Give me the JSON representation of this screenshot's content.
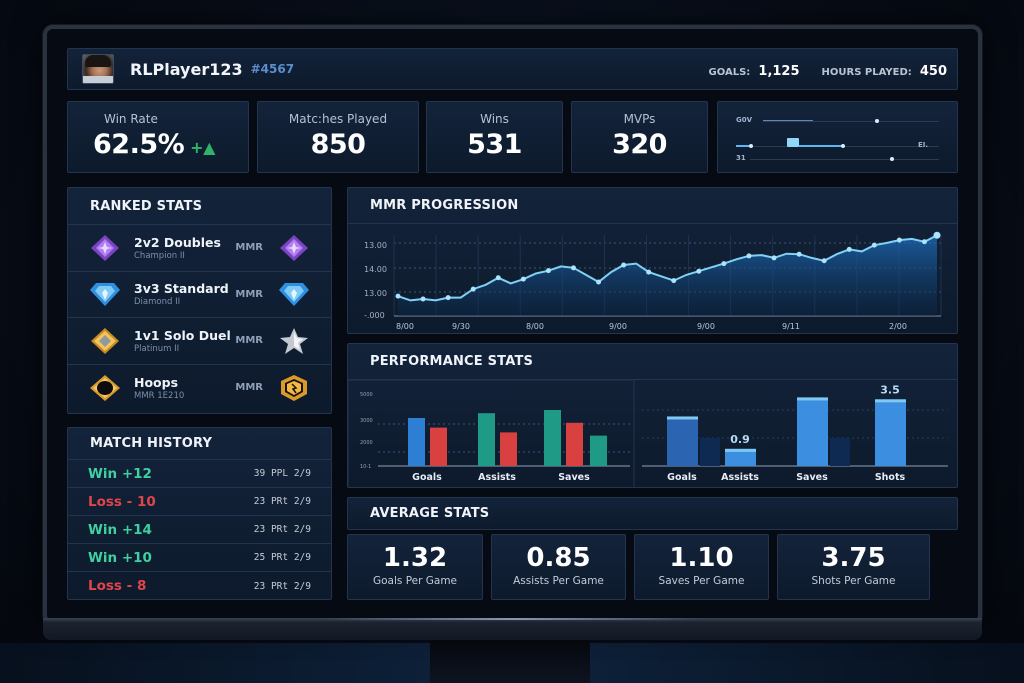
{
  "header": {
    "player_name": "RLPlayer123",
    "player_tag": "#4567",
    "goals_label": "GOALS:",
    "goals_value": "1,125",
    "hours_label": "HOURS PLAYED:",
    "hours_value": "450"
  },
  "summary": {
    "win_rate": {
      "label": "Win Rate",
      "value": "62.5%",
      "trend": "+▲"
    },
    "matches": {
      "label": "Matc:hes Played",
      "value": "850"
    },
    "wins": {
      "label": "Wins",
      "value": "531"
    },
    "mvps": {
      "label": "MVPs",
      "value": "320"
    },
    "mini_chart": {
      "labels": [
        "G0V",
        "EI.",
        "31"
      ]
    }
  },
  "ranked": {
    "title": "RANKED STATS",
    "rows": [
      {
        "mode": "2v2 Doubles",
        "tier": "Champion II",
        "mmr_label": "MMR",
        "icon": "champion-rank-icon",
        "color": "#9b5fe0"
      },
      {
        "mode": "3v3 Standard",
        "tier": "Diamond II",
        "mmr_label": "MMR",
        "icon": "diamond-rank-icon",
        "color": "#3aa3f0"
      },
      {
        "mode": "1v1 Solo Duel",
        "tier": "Platinum II",
        "mmr_label": "MMR",
        "icon": "platinum-rank-icon",
        "color": "#d9a437"
      },
      {
        "mode": "Hoops",
        "tier": "MMR 1E210",
        "mmr_label": "MMR",
        "icon": "hoops-rank-icon",
        "color": "#e1a232"
      }
    ]
  },
  "history": {
    "title": "MATCH HISTORY",
    "rows": [
      {
        "result": "Win +12",
        "type": "win",
        "meta": "39 PPL 2/9"
      },
      {
        "result": "Loss - 10",
        "type": "loss",
        "meta": "23 PRt 2/9"
      },
      {
        "result": "Win +14",
        "type": "win",
        "meta": "23 PRt 2/9"
      },
      {
        "result": "Win +10",
        "type": "win",
        "meta": "25 PRt 2/9"
      },
      {
        "result": "Loss - 8",
        "type": "loss",
        "meta": "23 PRt 2/9"
      }
    ]
  },
  "mmr_progression": {
    "title": "MMR PROGRESSION"
  },
  "performance": {
    "title": "PERFORMANCE STATS"
  },
  "average": {
    "title": "AVERAGE STATS",
    "cards": [
      {
        "value": "1.32",
        "label": "Goals Per Game"
      },
      {
        "value": "0.85",
        "label": "Assists Per Game"
      },
      {
        "value": "1.10",
        "label": "Saves Per Game"
      },
      {
        "value": "3.75",
        "label": "Shots Per Game"
      }
    ]
  },
  "chart_data": [
    {
      "type": "line",
      "title": "MMR PROGRESSION",
      "y_tick_labels": [
        "13.00",
        "14.00",
        "13.00",
        "-.000"
      ],
      "x_tick_labels": [
        "8/00",
        "9/30",
        "8/00",
        "9/00",
        "9/00",
        "9/11",
        "2/00"
      ],
      "values": [
        13.1,
        12.95,
        13.0,
        12.95,
        13.05,
        13.05,
        13.35,
        13.5,
        13.75,
        13.55,
        13.7,
        13.9,
        14.0,
        14.15,
        14.1,
        13.85,
        13.6,
        13.95,
        14.2,
        14.25,
        13.95,
        13.8,
        13.65,
        13.85,
        13.98,
        14.12,
        14.25,
        14.4,
        14.52,
        14.55,
        14.45,
        14.6,
        14.58,
        14.45,
        14.35,
        14.58,
        14.75,
        14.68,
        14.9,
        14.98,
        15.08,
        15.12,
        15.02,
        15.25
      ]
    },
    {
      "type": "bar",
      "title": "PERFORMANCE STATS (left)",
      "categories": [
        "Goals",
        "Assists",
        "Saves"
      ],
      "y_tick_labels": [
        "5000",
        "3000",
        "2000",
        "10-1"
      ],
      "series": [
        {
          "name": "series-1",
          "colors": [
            "#2d7fd4",
            "#1f9a86",
            "#1f9a86"
          ],
          "values": [
            3000,
            3300,
            3500
          ]
        },
        {
          "name": "series-2",
          "color": "#d94141",
          "values": [
            2400,
            2100,
            2700
          ]
        },
        {
          "name": "series-3",
          "color": "#1f9a86",
          "values": [
            null,
            null,
            1900
          ]
        }
      ]
    },
    {
      "type": "bar",
      "title": "PERFORMANCE STATS (right)",
      "categories": [
        "Goals",
        "Assists",
        "Saves",
        "Shots"
      ],
      "data_labels": {
        "Assists": "0.9",
        "Shots": "3.5"
      },
      "values": [
        2.6,
        0.9,
        3.6,
        3.5
      ]
    }
  ]
}
